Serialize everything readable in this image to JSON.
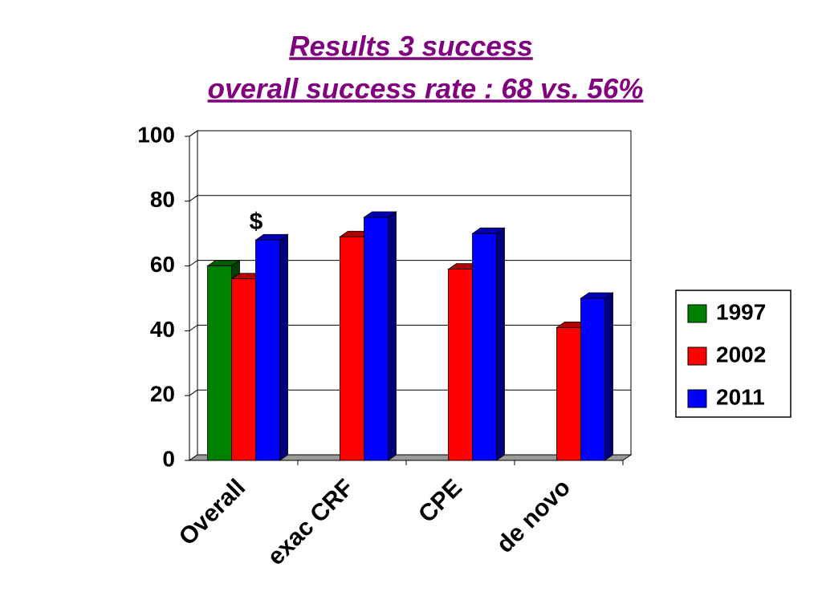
{
  "chart_data": {
    "type": "bar3d",
    "title": "Results 3 success",
    "subtitle": "overall success rate : 68 vs. 56%",
    "categories": [
      "Overall",
      "exac CRF",
      "CPE",
      "de novo"
    ],
    "series": [
      {
        "name": "1997",
        "color": "#008000",
        "values": [
          60,
          null,
          null,
          null
        ]
      },
      {
        "name": "2002",
        "color": "#ff0000",
        "values": [
          56,
          69,
          59,
          41
        ]
      },
      {
        "name": "2011",
        "color": "#0000ff",
        "values": [
          68,
          75,
          70,
          50
        ]
      }
    ],
    "annotations": [
      {
        "text": "$"
      }
    ],
    "ylim": [
      0,
      100
    ],
    "yticks": [
      0,
      20,
      40,
      60,
      80,
      100
    ],
    "grid": true,
    "legend": "right"
  }
}
